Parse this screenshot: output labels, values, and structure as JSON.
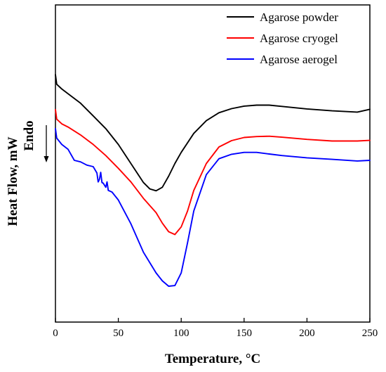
{
  "chart_data": {
    "type": "line",
    "xlabel": "Temperature, °C",
    "ylabel": "Heat Flow, mW",
    "annotation": "Endo",
    "xlim": [
      0,
      250
    ],
    "ylim": [
      0,
      100
    ],
    "xticks": [
      0,
      50,
      100,
      150,
      200,
      250
    ],
    "ytick_labels": "none",
    "legend_position": "top-right",
    "grid": false,
    "series": [
      {
        "name": "Agarose powder",
        "color": "#000000",
        "x": [
          0,
          1,
          5,
          10,
          20,
          30,
          40,
          50,
          60,
          70,
          75,
          80,
          85,
          90,
          95,
          100,
          110,
          120,
          130,
          140,
          150,
          160,
          170,
          180,
          200,
          220,
          240,
          250
        ],
        "y": [
          78,
          75,
          73.5,
          72,
          69,
          65,
          61,
          56,
          50,
          44,
          42,
          41.4,
          42.5,
          46,
          50,
          53.5,
          59.5,
          63.5,
          66,
          67.3,
          68.1,
          68.4,
          68.4,
          68,
          67.2,
          66.6,
          66.2,
          67.1
        ]
      },
      {
        "name": "Agarose cryogel",
        "color": "#ff0000",
        "x": [
          0,
          1,
          5,
          10,
          20,
          30,
          40,
          50,
          60,
          70,
          80,
          85,
          90,
          95,
          100,
          105,
          110,
          120,
          130,
          140,
          150,
          160,
          170,
          180,
          200,
          220,
          240,
          250
        ],
        "y": [
          67,
          64,
          62.5,
          61.5,
          59,
          56,
          52.5,
          48.5,
          44.2,
          39,
          34.5,
          31.2,
          28.5,
          27.6,
          30,
          35,
          41.5,
          50,
          55.2,
          57.2,
          58.2,
          58.5,
          58.6,
          58.3,
          57.6,
          57.1,
          57.1,
          57.3
        ]
      },
      {
        "name": "Agarose aerogel",
        "color": "#0000ff",
        "x": [
          0,
          1,
          5,
          10,
          15,
          20,
          25,
          30,
          33,
          34,
          35,
          36,
          37,
          38,
          40,
          41,
          42,
          45,
          50,
          60,
          70,
          80,
          85,
          90,
          95,
          100,
          105,
          110,
          120,
          130,
          140,
          150,
          160,
          170,
          180,
          200,
          220,
          240,
          250
        ],
        "y": [
          61,
          58,
          56,
          54.5,
          51,
          50.5,
          49.5,
          49,
          47,
          44.2,
          45,
          47.2,
          44,
          43.8,
          42.5,
          44.2,
          41.5,
          41,
          38.5,
          31,
          22,
          15.5,
          13,
          11.3,
          11.5,
          15.5,
          25,
          35,
          46.5,
          51.5,
          52.9,
          53.5,
          53.5,
          53,
          52.5,
          51.8,
          51.3,
          50.8,
          51
        ]
      }
    ]
  }
}
